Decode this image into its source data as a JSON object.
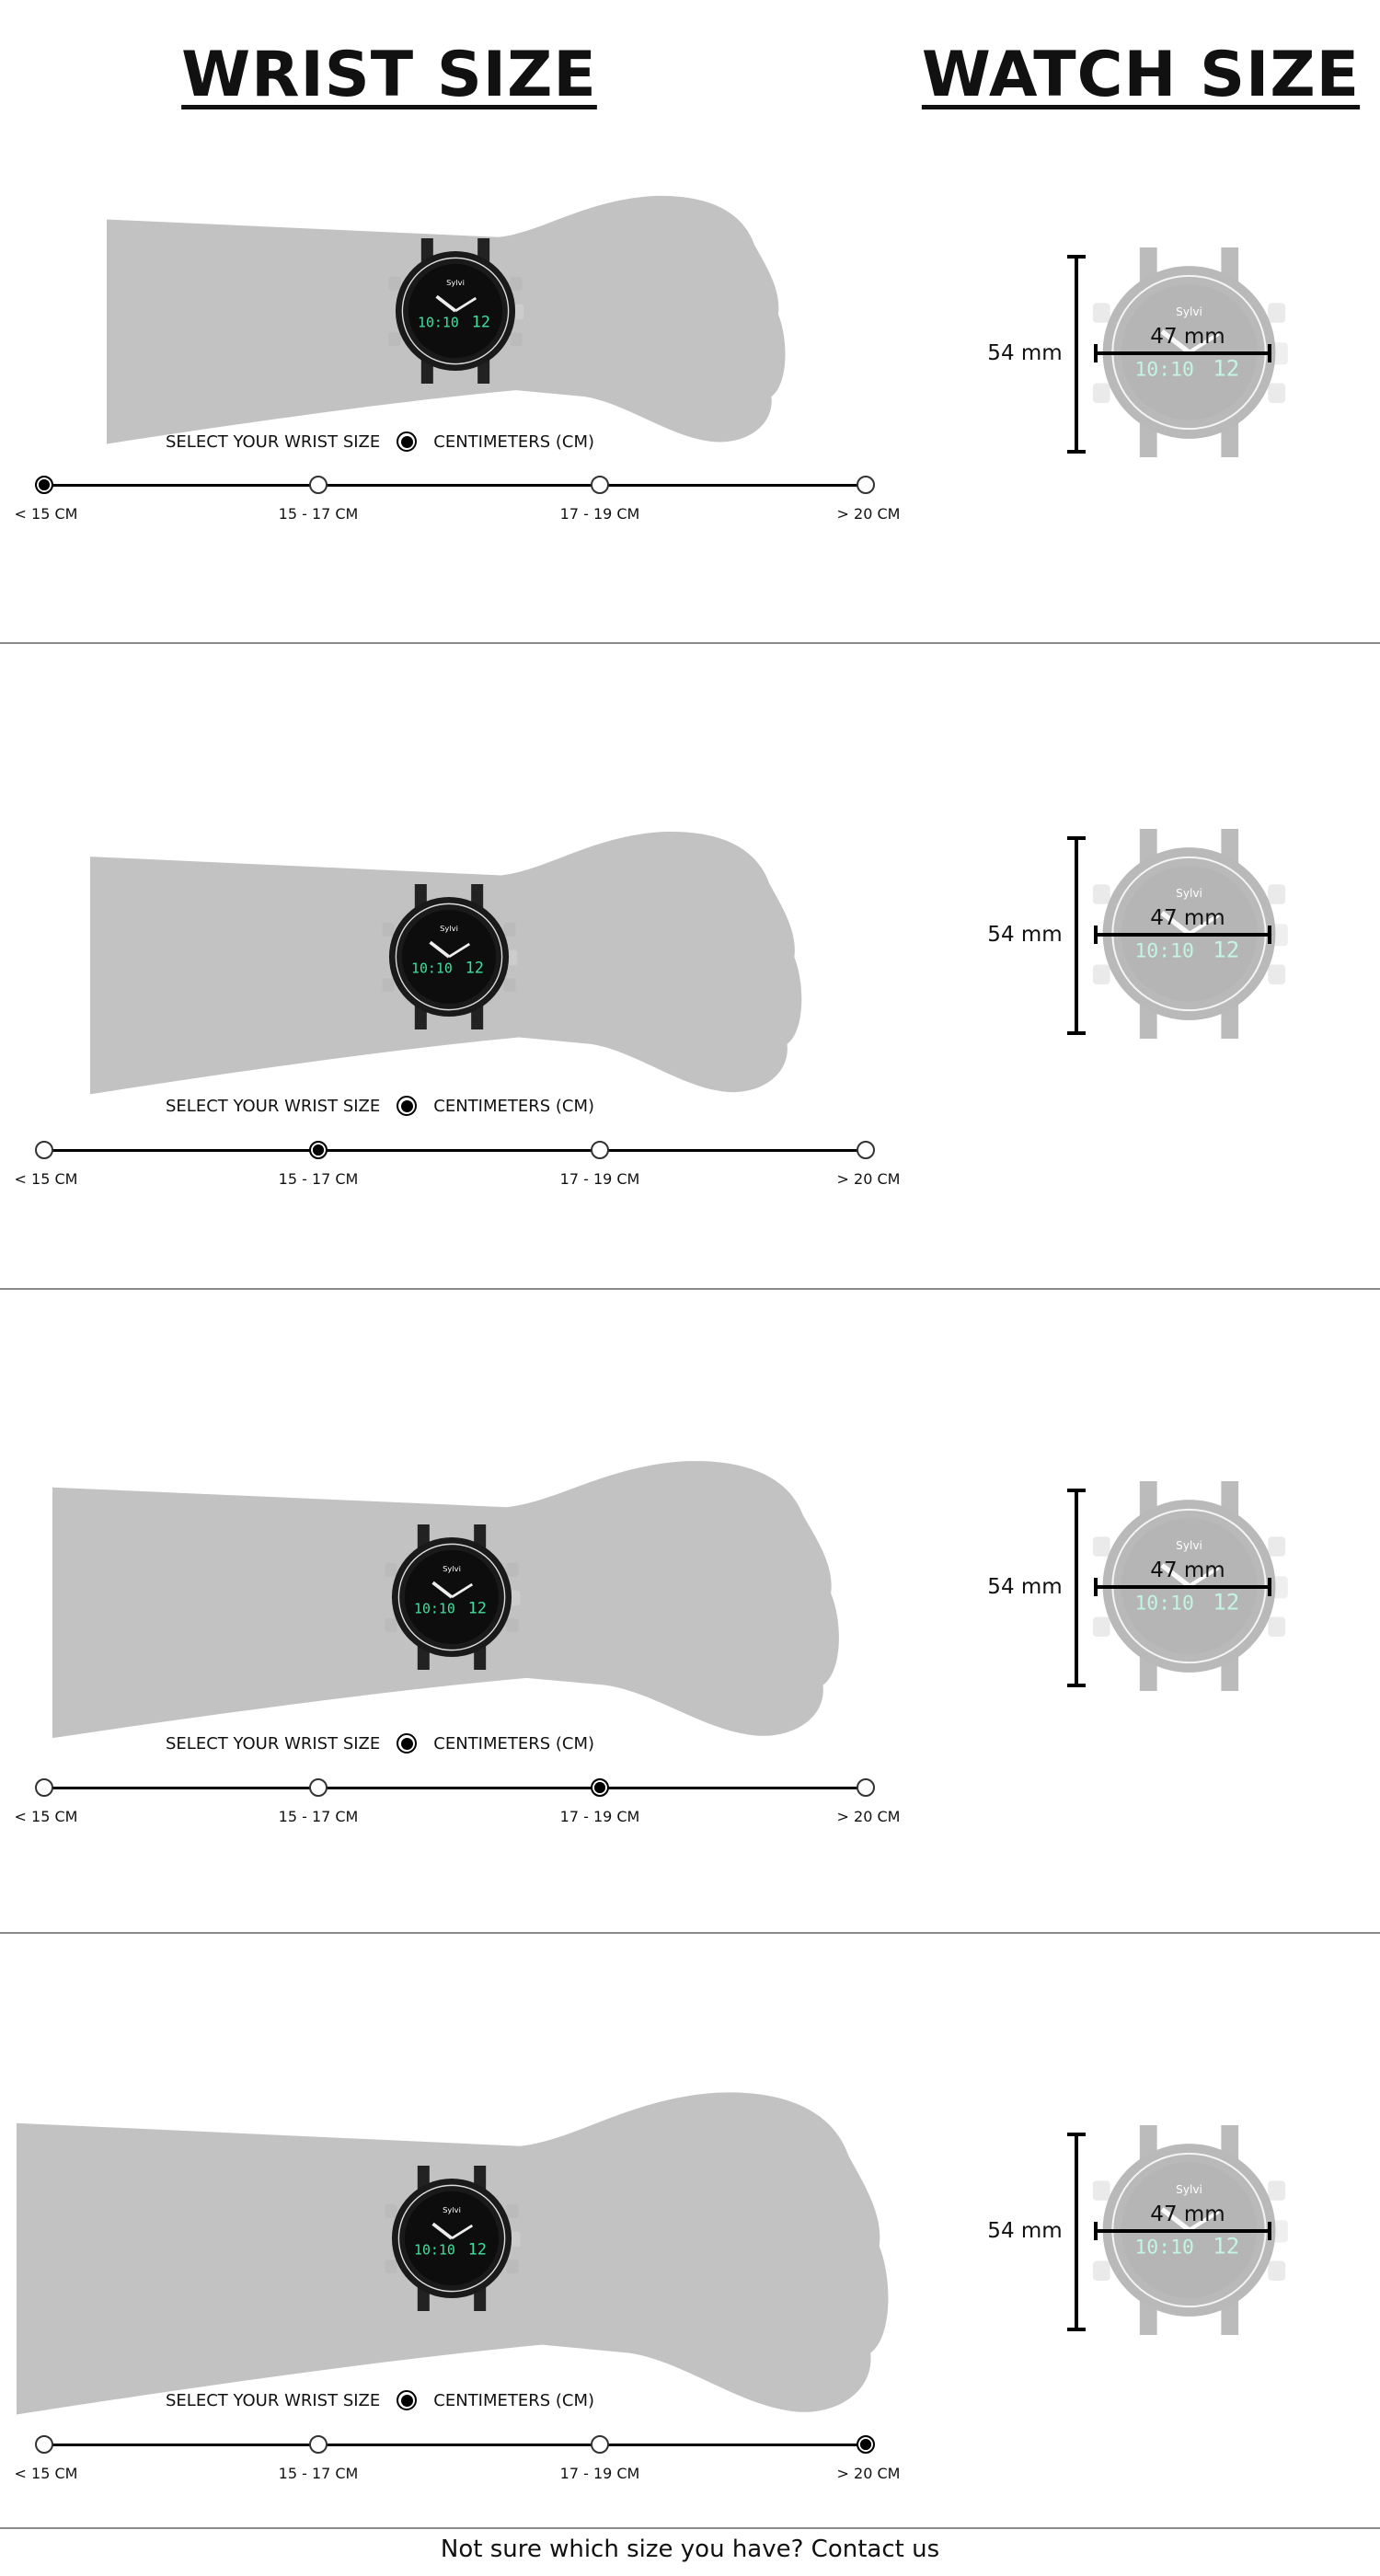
{
  "headers": {
    "wrist_title": "WRIST SIZE",
    "watch_title": "WATCH SIZE"
  },
  "selector": {
    "label": "SELECT YOUR WRIST SIZE",
    "unit_label": "CENTIMETERS (CM)",
    "options": [
      "< 15 CM",
      "15 - 17 CM",
      "17 - 19 CM",
      "> 20 CM"
    ]
  },
  "watch": {
    "height": "54 mm",
    "width": "47 mm",
    "brand": "Sylvi",
    "digital_time": "10:10",
    "digital_date": "12"
  },
  "sections": [
    {
      "selected_index": 0
    },
    {
      "selected_index": 1
    },
    {
      "selected_index": 2
    },
    {
      "selected_index": 3
    }
  ],
  "colors": {
    "arm": "#c2c2c2",
    "digits": "#3fe0a0",
    "track": "#000000"
  },
  "footer": {
    "text": "Not sure which size you have? Contact us"
  }
}
